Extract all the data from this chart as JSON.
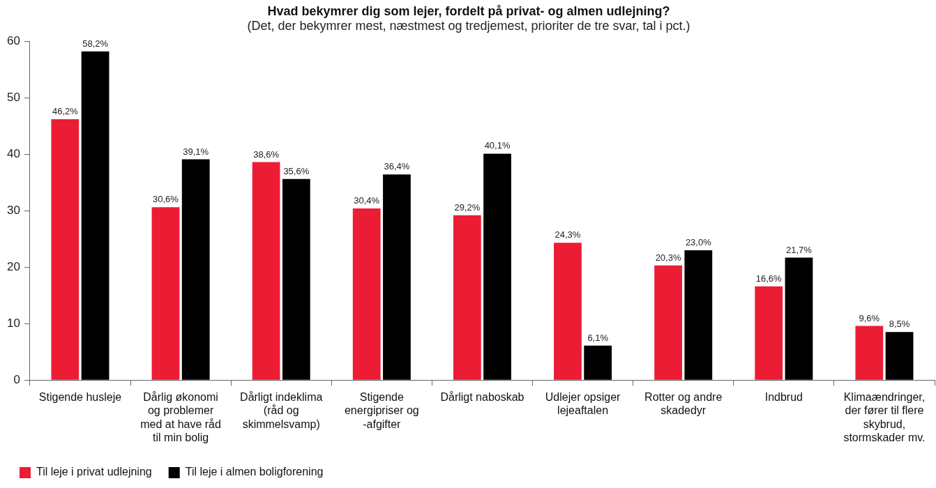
{
  "chart_data": {
    "type": "bar",
    "title": "Hvad bekymrer dig som lejer, fordelt på privat- og almen udlejning?",
    "subtitle": "(Det, der bekymrer mest, næstmest og tredjemest, prioriter de tre svar, tal i pct.)",
    "categories": [
      "Stigende husleje",
      "Dårlig økonomi og problemer med at have råd til min bolig",
      "Dårligt indeklima (råd og skimmelsvamp)",
      "Stigende energipriser og -afgifter",
      "Dårligt naboskab",
      "Udlejer opsiger lejeaftalen",
      "Rotter og andre skadedyr",
      "Indbrud",
      "Klimaændringer, der fører til flere skybrud, stormskader mv."
    ],
    "series": [
      {
        "name": "Til leje i privat udlejning",
        "color": "#ec1c35",
        "values": [
          46.2,
          30.6,
          38.6,
          30.4,
          29.2,
          24.3,
          20.3,
          16.6,
          9.6
        ],
        "value_labels": [
          "46,2%",
          "30,6%",
          "38,6%",
          "30,4%",
          "29,2%",
          "24,3%",
          "20,3%",
          "16,6%",
          "9,6%"
        ]
      },
      {
        "name": "Til leje i almen boligforening",
        "color": "#000000",
        "values": [
          58.2,
          39.1,
          35.6,
          36.4,
          40.1,
          6.1,
          23.0,
          21.7,
          8.5
        ],
        "value_labels": [
          "58,2%",
          "39,1%",
          "35,6%",
          "36,4%",
          "40,1%",
          "6,1%",
          "23,0%",
          "21,7%",
          "8,5%"
        ]
      }
    ],
    "ylim": [
      0,
      60
    ],
    "yticks": [
      0,
      10,
      20,
      30,
      40,
      50,
      60
    ],
    "grid": false,
    "legend": "bottom left"
  }
}
